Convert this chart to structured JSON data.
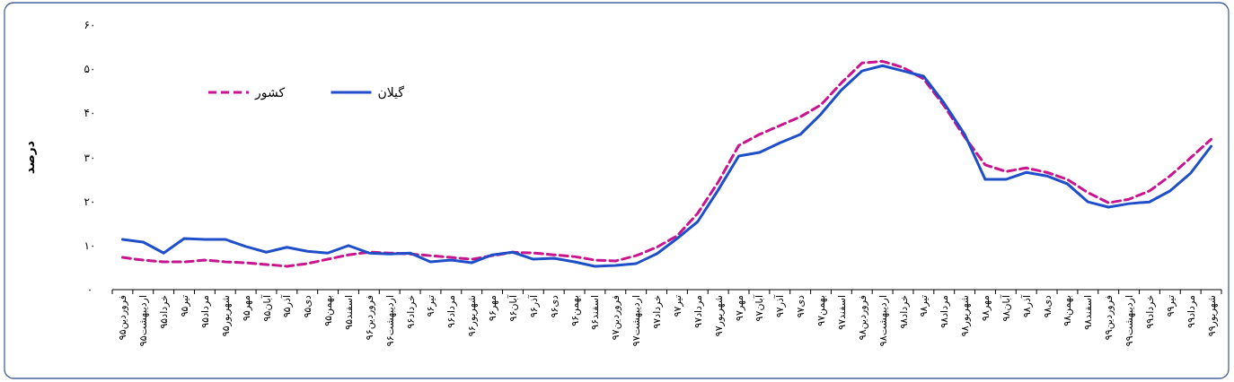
{
  "chart_data": {
    "type": "line",
    "ylabel": "درصد",
    "legend": "top left",
    "categories": [
      "فروردین۹۵",
      "اردیبهشت۹۵",
      "خرداد۹۵",
      "تیر۹۵",
      "مرداد۹۵",
      "شهریور۹۵",
      "مهر۹۵",
      "آبان۹۵",
      "آذر۹۵",
      "دی۹۵",
      "بهمن۹۵",
      "اسفند۹۵",
      "فروردین۹۶",
      "اردیبهشت۹۶",
      "خرداد۹۶",
      "تیر۹۶",
      "مرداد۹۶",
      "شهریور۹۶",
      "مهر۹۶",
      "آبان۹۶",
      "آذر۹۶",
      "دی۹۶",
      "بهمن۹۶",
      "اسفند۹۶",
      "فروردین۹۷",
      "اردیبهشت۹۷",
      "خرداد۹۷",
      "تیر۹۷",
      "مرداد۹۷",
      "شهریور۹۷",
      "مهر۹۷",
      "آبان۹۷",
      "آذر۹۷",
      "دی۹۷",
      "بهمن۹۷",
      "اسفند۹۷",
      "فروردین۹۸",
      "اردیبهشت۹۸",
      "خرداد۹۸",
      "تیر۹۸",
      "مرداد۹۸",
      "شهریور۹۸",
      "مهر۹۸",
      "آبان۹۸",
      "آذر۹۸",
      "دی۹۸",
      "بهمن۹۸",
      "اسفند۹۸",
      "فروردین۹۹",
      "اردیبهشت۹۹",
      "خرداد۹۹",
      "تیر۹۹",
      "مرداد۹۹",
      "شهریور۹۹"
    ],
    "ylim": [
      0,
      60
    ],
    "yticks": [
      {
        "value": 0,
        "label": "۰"
      },
      {
        "value": 10,
        "label": "۱۰"
      },
      {
        "value": 20,
        "label": "۲۰"
      },
      {
        "value": 30,
        "label": "۳۰"
      },
      {
        "value": 40,
        "label": "۴۰"
      },
      {
        "value": 50,
        "label": "۵۰"
      },
      {
        "value": 60,
        "label": "۶۰"
      }
    ],
    "series": [
      {
        "name": "کشور",
        "color": "#c8158f",
        "line_style": "dashed",
        "values": [
          7.3,
          6.7,
          6.3,
          6.3,
          6.7,
          6.3,
          6.1,
          5.7,
          5.3,
          5.9,
          6.9,
          7.9,
          8.5,
          8.3,
          8.1,
          7.7,
          7.3,
          6.9,
          7.7,
          8.5,
          8.3,
          7.9,
          7.5,
          6.7,
          6.5,
          7.7,
          9.6,
          12.2,
          17.3,
          24.4,
          32.7,
          35.2,
          37.2,
          39.2,
          41.9,
          46.9,
          51.4,
          51.8,
          50.4,
          47.8,
          41.7,
          34.6,
          28.3,
          26.8,
          27.6,
          26.6,
          25.0,
          22.0,
          19.7,
          20.5,
          22.4,
          25.8,
          29.9,
          34.1
        ]
      },
      {
        "name": "گیلان",
        "color": "#1f4fc8",
        "line_style": "solid",
        "values": [
          11.4,
          10.8,
          8.3,
          11.6,
          11.4,
          11.4,
          9.8,
          8.5,
          9.6,
          8.7,
          8.3,
          10.0,
          8.3,
          8.1,
          8.3,
          6.3,
          6.7,
          6.1,
          7.9,
          8.5,
          6.9,
          7.1,
          6.3,
          5.3,
          5.5,
          5.9,
          8.1,
          11.6,
          15.4,
          22.6,
          30.3,
          31.1,
          33.3,
          35.2,
          39.8,
          45.3,
          49.6,
          50.8,
          49.6,
          48.4,
          42.3,
          35.2,
          25.0,
          25.0,
          26.6,
          25.8,
          24.0,
          19.9,
          18.7,
          19.5,
          19.9,
          22.4,
          26.4,
          32.5
        ]
      }
    ]
  }
}
